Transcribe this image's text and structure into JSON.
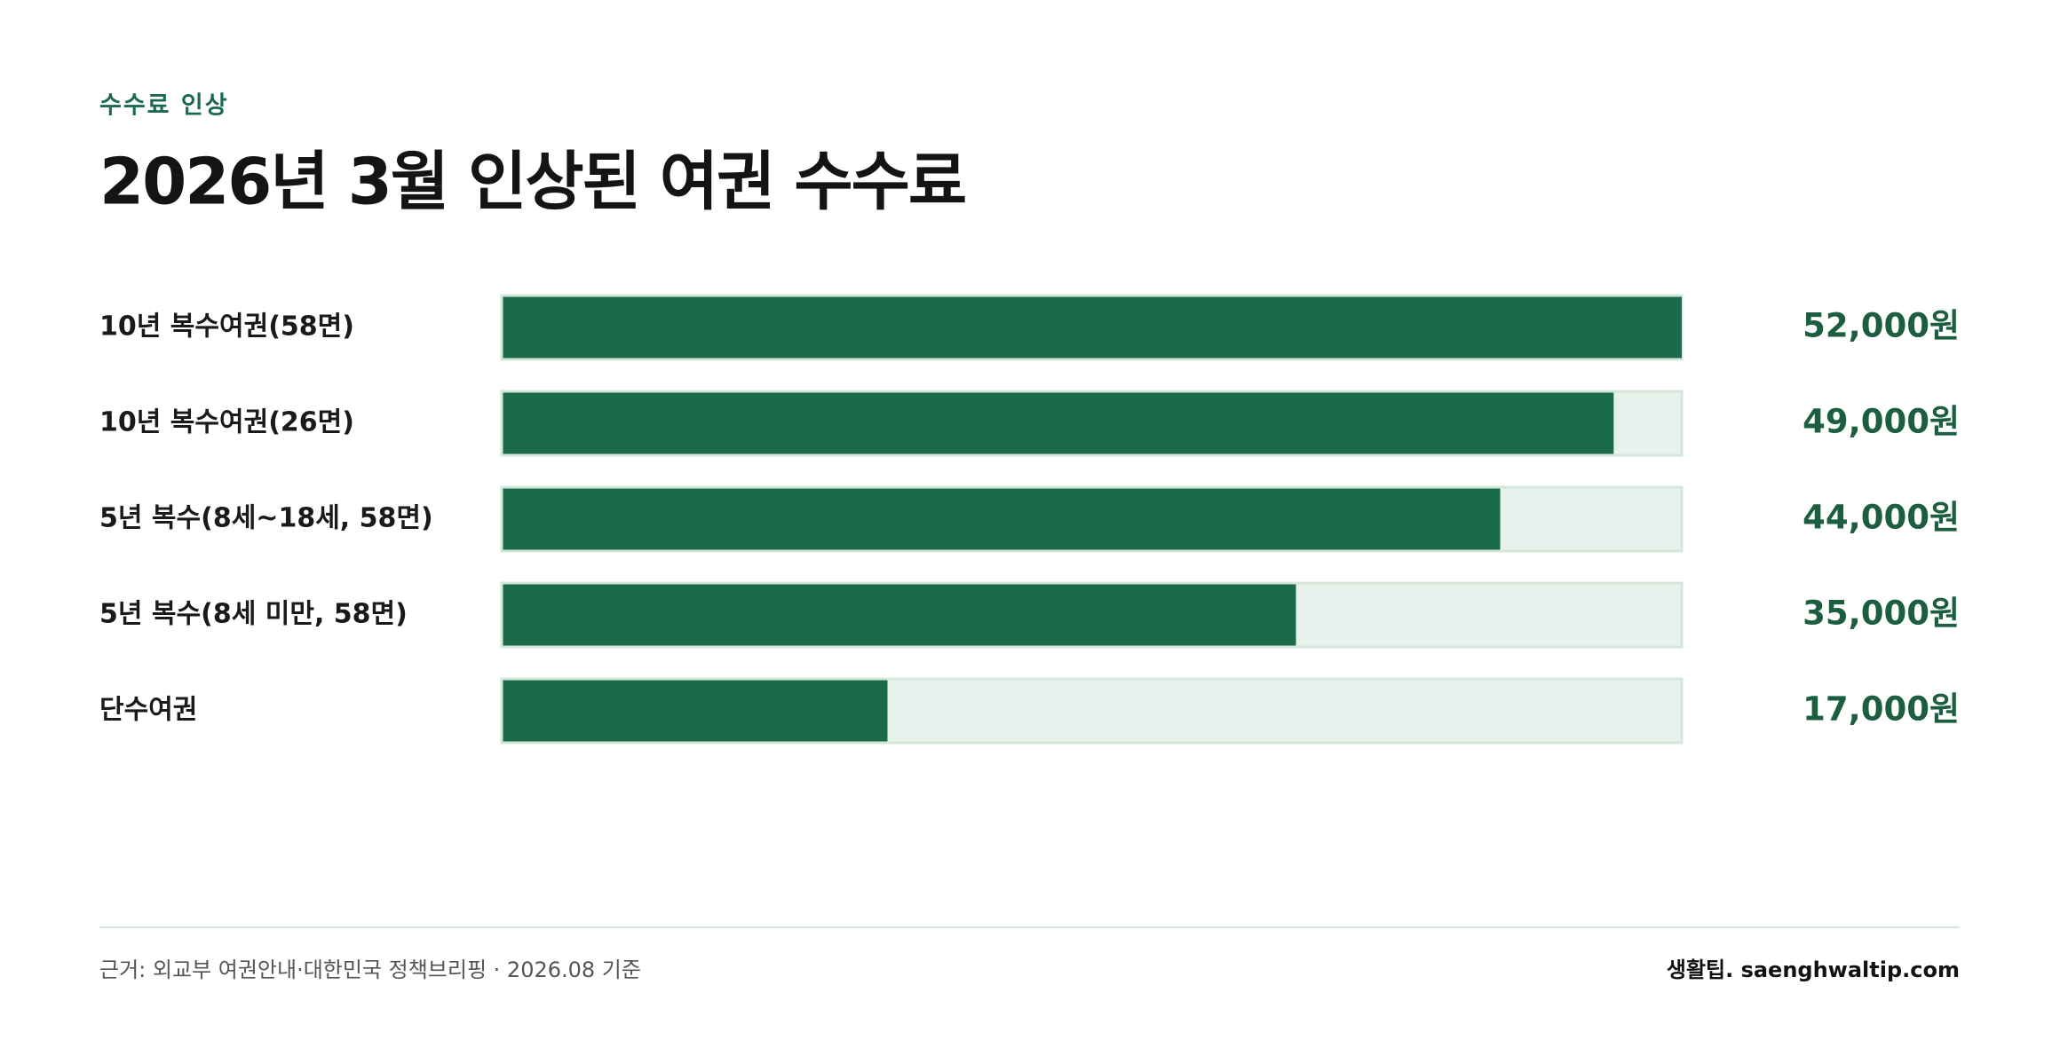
{
  "chart_data": {
    "type": "bar",
    "orientation": "horizontal",
    "kicker": "수수료 인상",
    "title": "2026년 3월 인상된 여권 수수료",
    "categories": [
      "10년 복수여권(58면)",
      "10년 복수여권(26면)",
      "5년 복수(8세~18세, 58면)",
      "5년 복수(8세 미만, 58면)",
      "단수여권"
    ],
    "values": [
      52000,
      49000,
      44000,
      35000,
      17000
    ],
    "value_labels": [
      "52,000원",
      "49,000원",
      "44,000원",
      "35,000원",
      "17,000원"
    ],
    "color": "#1b6a4b",
    "track_color": "#e8f2ec"
  },
  "footer": {
    "source": "근거: 외교부 여권안내·대한민국 정책브리핑 · 2026.08 기준",
    "brand": "생활팁. saenghwaltip.com"
  }
}
